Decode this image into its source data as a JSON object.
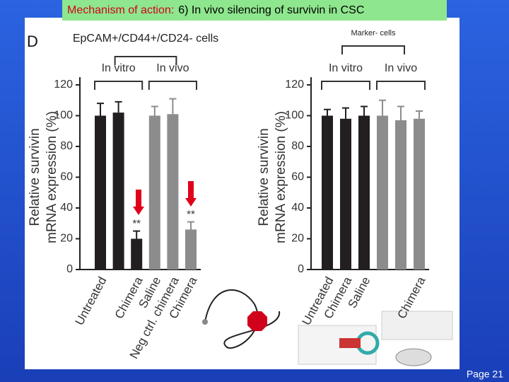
{
  "slide": {
    "title_lead": "Mechanism of action:",
    "title_rest": "6) In vivo silencing of survivin in CSC",
    "panel": "D",
    "page": "Page  21"
  },
  "chart_data": [
    {
      "type": "bar",
      "group_title": "EpCAM+/CD44+/CD24- cells",
      "groups": [
        "In vitro",
        "In vivo"
      ],
      "ylabel": [
        "Relative survivin",
        "mRNA expression (%)"
      ],
      "categories": [
        "Untreated",
        null,
        "Chimera",
        "Saline",
        "Neg ctrl. chimera",
        "Chimera"
      ],
      "values": [
        100,
        102,
        20,
        100,
        101,
        26
      ],
      "errors": [
        8,
        7,
        5,
        6,
        10,
        5
      ],
      "significance": [
        null,
        null,
        "**",
        null,
        null,
        "**"
      ],
      "colors": [
        "#231f20",
        "#231f20",
        "#231f20",
        "#8c8c8c",
        "#8c8c8c",
        "#8c8c8c"
      ],
      "ylim": [
        0,
        125
      ],
      "yticks": [
        0,
        20,
        40,
        60,
        80,
        100,
        120
      ]
    },
    {
      "type": "bar",
      "group_title": "Marker- cells",
      "groups": [
        "In vitro",
        "In vivo"
      ],
      "ylabel": [
        "Relative survivin",
        "mRNA expression (%)"
      ],
      "categories": [
        "Untreated",
        "Chimera",
        "Saline",
        null,
        null,
        "Chimera"
      ],
      "values": [
        100,
        98,
        100,
        100,
        97,
        98
      ],
      "errors": [
        4,
        7,
        6,
        10,
        9,
        5
      ],
      "colors": [
        "#231f20",
        "#231f20",
        "#231f20",
        "#8c8c8c",
        "#8c8c8c",
        "#8c8c8c"
      ],
      "ylim": [
        0,
        125
      ],
      "yticks": [
        0,
        20,
        40,
        60,
        80,
        100,
        120
      ]
    }
  ]
}
